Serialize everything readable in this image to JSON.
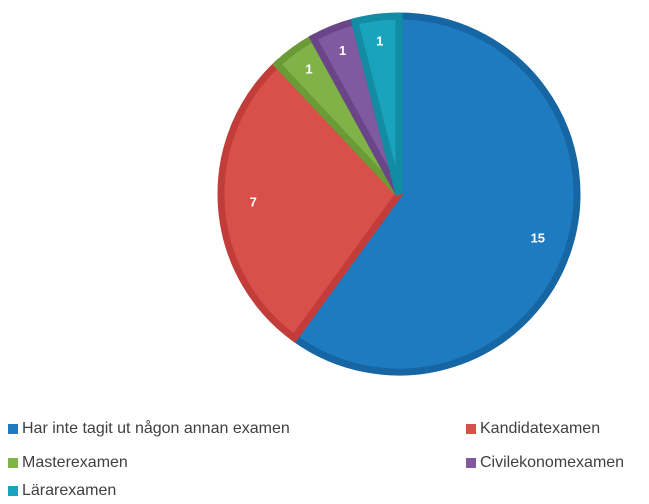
{
  "chart_data": {
    "type": "pie",
    "categories": [
      "Har inte tagit ut någon annan examen",
      "Kandidatexamen",
      "Masterexamen",
      "Civilekonomexamen",
      "Lärarexamen"
    ],
    "values": [
      15,
      7,
      1,
      1,
      1
    ],
    "data_labels": [
      "15",
      "7",
      "1",
      "1",
      "1"
    ],
    "colors": [
      "#1f7bbf",
      "#d9504b",
      "#7fb347",
      "#7f5aa0",
      "#1aa3bd"
    ],
    "border_colors": [
      "#1566a3",
      "#c23d39",
      "#6a9b36",
      "#6a4688",
      "#118ca3"
    ],
    "legend_placement": "bottom",
    "title": ""
  }
}
